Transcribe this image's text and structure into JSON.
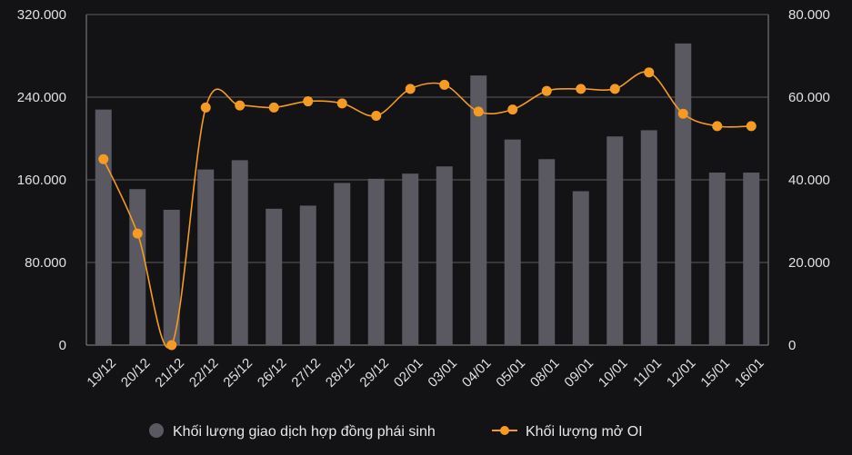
{
  "chart_data": {
    "type": "bar",
    "categories": [
      "19/12",
      "20/12",
      "21/12",
      "22/12",
      "25/12",
      "26/12",
      "27/12",
      "28/12",
      "29/12",
      "02/01",
      "03/01",
      "04/01",
      "05/01",
      "08/01",
      "09/01",
      "10/01",
      "11/01",
      "12/01",
      "15/01",
      "16/01"
    ],
    "series": [
      {
        "name": "Khối lượng giao dịch hợp đồng phái sinh",
        "type": "bar",
        "axis": "left",
        "color": "#5a5860",
        "values": [
          228000,
          151000,
          131000,
          170000,
          179000,
          132000,
          135000,
          157000,
          161000,
          166000,
          173000,
          261000,
          199000,
          180000,
          149000,
          202000,
          208000,
          292000,
          167000,
          167000
        ]
      },
      {
        "name": "Khối lượng mở OI",
        "type": "line",
        "axis": "right",
        "color": "#f59a23",
        "values": [
          45000,
          27000,
          0,
          57500,
          58000,
          57500,
          59000,
          58500,
          55500,
          62000,
          63000,
          56500,
          57000,
          61500,
          62000,
          62000,
          66000,
          56000,
          53000,
          53000
        ]
      }
    ],
    "y_left": {
      "ylim": [
        0,
        320000
      ],
      "ticks": [
        "0",
        "80.000",
        "160.000",
        "240.000",
        "320.000"
      ]
    },
    "y_right": {
      "ylim": [
        0,
        80000
      ],
      "ticks": [
        "0",
        "20.000",
        "40.000",
        "60.000",
        "80.000"
      ]
    },
    "grid": true,
    "legend_position": "bottom"
  },
  "legend": {
    "bar_label": "Khối lượng giao dịch hợp đồng phái sinh",
    "line_label": "Khối lượng mở OI"
  },
  "colors": {
    "background": "#131316",
    "bar": "#5a5860",
    "line": "#f59a23",
    "grid": "#5c5c5c",
    "frame": "#8a8a8a"
  }
}
